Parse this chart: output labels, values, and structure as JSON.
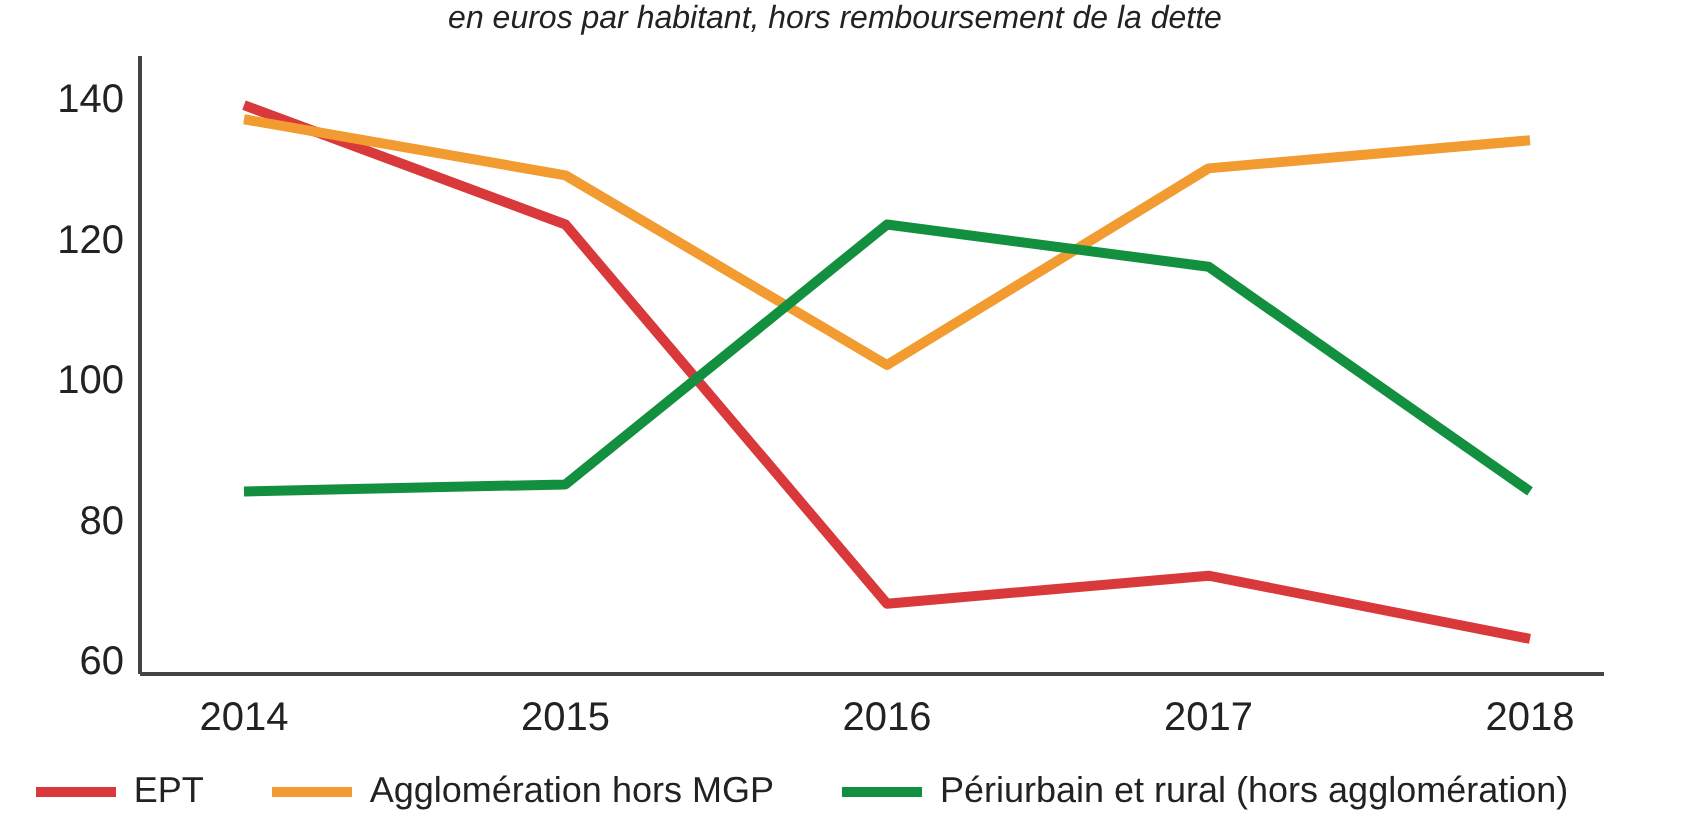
{
  "chart_data": {
    "type": "line",
    "subtitle": "en euros par habitant, hors remboursement de la dette",
    "categories": [
      "2014",
      "2015",
      "2016",
      "2017",
      "2018"
    ],
    "series": [
      {
        "name": "EPT",
        "color": "#d9393a",
        "values": [
          139,
          122,
          68,
          72,
          63
        ]
      },
      {
        "name": "Agglomération hors MGP",
        "color": "#f29b30",
        "values": [
          137,
          129,
          102,
          130,
          134
        ]
      },
      {
        "name": "Périurbain et rural (hors agglomération)",
        "color": "#13903f",
        "values": [
          84,
          85,
          122,
          116,
          84
        ]
      }
    ],
    "ylim": [
      58,
      146
    ],
    "yticks": [
      60,
      80,
      100,
      120,
      140
    ],
    "legend": "bottom",
    "line_style": "solid"
  }
}
